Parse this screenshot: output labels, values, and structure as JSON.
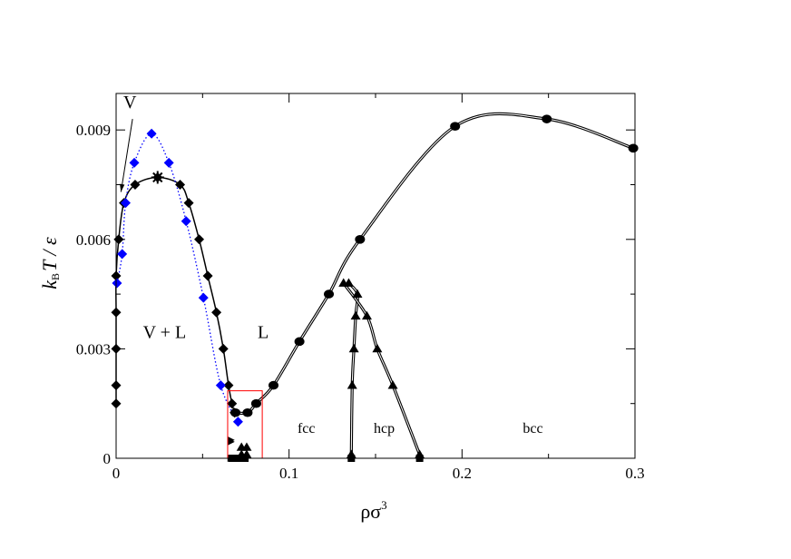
{
  "chart_data": {
    "type": "scatter",
    "title": "",
    "xlabel": "ρσ",
    "xlabel_superscript": "3",
    "ylabel": "k",
    "ylabel_subscript": "B",
    "ylabel_rest": "T / ε",
    "xlim": [
      0,
      0.3
    ],
    "ylim": [
      0,
      0.01
    ],
    "grid": false,
    "x_ticks": [
      {
        "value": 0,
        "label": "0"
      },
      {
        "value": 0.1,
        "label": "0.1"
      },
      {
        "value": 0.2,
        "label": "0.2"
      },
      {
        "value": 0.3,
        "label": "0.3"
      }
    ],
    "y_ticks": [
      {
        "value": 0,
        "label": "0"
      },
      {
        "value": 0.003,
        "label": "0.003"
      },
      {
        "value": 0.006,
        "label": "0.006"
      },
      {
        "value": 0.009,
        "label": "0.009"
      }
    ],
    "x_minor_ticks": [
      0.05,
      0.15,
      0.25
    ],
    "y_minor_ticks": [
      0.0015,
      0.0045,
      0.0075
    ],
    "region_labels": [
      {
        "text": "V",
        "x": 0.008,
        "y": 0.0096,
        "size": "large"
      },
      {
        "text": "V + L",
        "x": 0.028,
        "y": 0.0033,
        "size": "large"
      },
      {
        "text": "L",
        "x": 0.085,
        "y": 0.0033,
        "size": "large"
      },
      {
        "text": "fcc",
        "x": 0.11,
        "y": 0.0007,
        "size": "small"
      },
      {
        "text": "hcp",
        "x": 0.155,
        "y": 0.0007,
        "size": "small"
      },
      {
        "text": "bcc",
        "x": 0.241,
        "y": 0.0007,
        "size": "small"
      }
    ],
    "arrow": {
      "from": [
        0.0095,
        0.0093
      ],
      "to": [
        0.0028,
        0.0073
      ]
    },
    "critical_point": {
      "x": 0.024,
      "y": 0.0077
    },
    "inset_box": {
      "x0": 0.0645,
      "x1": 0.0845,
      "y0": 0.0,
      "y1": 0.00185,
      "color": "#ff0000"
    },
    "series": [
      {
        "marker": "diamond",
        "color": "#000000",
        "line": "solid",
        "points": [
          [
            0.0,
            0.0015
          ],
          [
            0.0,
            0.002
          ],
          [
            0.0,
            0.003
          ],
          [
            0.0,
            0.004
          ],
          [
            0.0,
            0.005
          ],
          [
            0.0015,
            0.006
          ],
          [
            0.0045,
            0.007
          ],
          [
            0.011,
            0.0075
          ],
          [
            0.024,
            0.0077
          ],
          [
            0.037,
            0.0075
          ],
          [
            0.042,
            0.007
          ],
          [
            0.048,
            0.006
          ],
          [
            0.053,
            0.005
          ],
          [
            0.058,
            0.004
          ],
          [
            0.062,
            0.003
          ],
          [
            0.065,
            0.002
          ],
          [
            0.067,
            0.0015
          ],
          [
            0.0685,
            0.00125
          ]
        ]
      },
      {
        "marker": "diamond",
        "color": "#0000ff",
        "line": "dotted",
        "points": [
          [
            0.0005,
            0.0048
          ],
          [
            0.0035,
            0.0056
          ],
          [
            0.0055,
            0.007
          ],
          [
            0.0105,
            0.0081
          ],
          [
            0.0205,
            0.0089
          ],
          [
            0.0305,
            0.0081
          ],
          [
            0.0405,
            0.0065
          ],
          [
            0.0505,
            0.0044
          ],
          [
            0.0605,
            0.002
          ],
          [
            0.0705,
            0.001
          ]
        ]
      },
      {
        "marker": "circle",
        "color": "#000000",
        "line": "double",
        "points": [
          [
            0.069,
            0.00125
          ],
          [
            0.076,
            0.00125
          ],
          [
            0.081,
            0.0015
          ],
          [
            0.091,
            0.002
          ],
          [
            0.106,
            0.0032
          ],
          [
            0.123,
            0.0045
          ],
          [
            0.141,
            0.006
          ],
          [
            0.196,
            0.0091
          ],
          [
            0.249,
            0.0093
          ],
          [
            0.299,
            0.0085
          ]
        ]
      },
      {
        "marker": "triangle",
        "color": "#000000",
        "line": "double",
        "points": [
          [
            0.136,
            0.0001
          ],
          [
            0.1365,
            0.002
          ],
          [
            0.1375,
            0.003
          ],
          [
            0.1385,
            0.0039
          ],
          [
            0.1395,
            0.0045
          ],
          [
            0.1345,
            0.0048
          ],
          [
            0.1315,
            0.0048
          ],
          [
            0.145,
            0.0039
          ],
          [
            0.151,
            0.003
          ],
          [
            0.16,
            0.002
          ],
          [
            0.1755,
            0.0001
          ]
        ]
      },
      {
        "marker": "square",
        "color": "#000000",
        "line": "none",
        "points": [
          [
            0.136,
            0.0
          ],
          [
            0.1755,
            0.0
          ],
          [
            0.067,
            0.0
          ],
          [
            0.0705,
            0.0
          ],
          [
            0.0745,
            0.0
          ]
        ]
      },
      {
        "marker": "triangle-right",
        "color": "#000000",
        "line": "none",
        "points": [
          [
            0.0665,
            0.0
          ],
          [
            0.0665,
            0.0005
          ],
          [
            0.0665,
            0.00045
          ]
        ]
      }
    ],
    "near_zero_triangles": [
      [
        0.0725,
        0.0003
      ],
      [
        0.0755,
        0.0003
      ],
      [
        0.0725,
        0.0001
      ],
      [
        0.0755,
        0.0001
      ]
    ]
  }
}
